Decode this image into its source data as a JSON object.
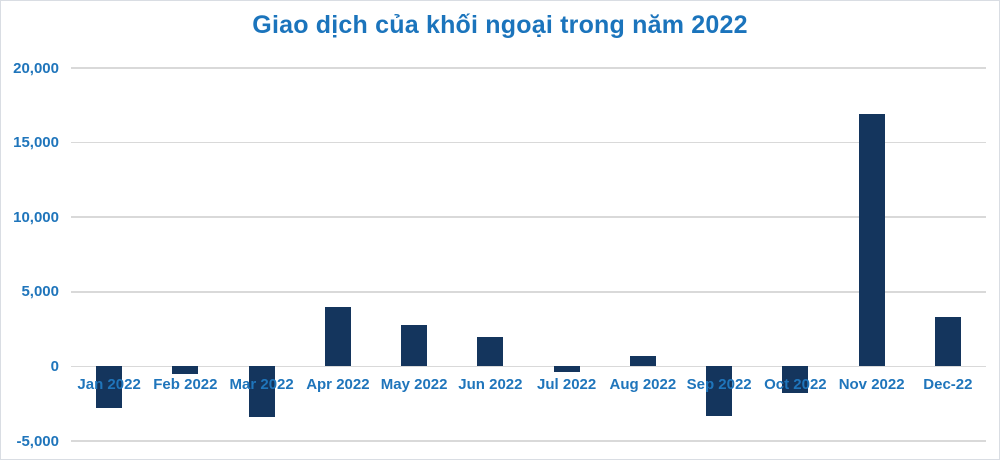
{
  "title": "Giao dịch của khối ngoại trong năm 2022",
  "colors": {
    "title_text": "#1B74BC",
    "axis_label_text": "#1F75BB",
    "bar_fill": "#14355D",
    "gridline": "#D9D9D9",
    "background": "#FFFFFF",
    "frame_border": "#D9DDE3"
  },
  "chart_data": {
    "type": "bar",
    "title": "Giao dịch của khối ngoại trong năm 2022",
    "xlabel": "",
    "ylabel": "",
    "ylim": [
      -5000,
      20000
    ],
    "grid": "horizontal gridlines only, light gray",
    "legend": "none",
    "bar_color": "#14355D",
    "categories": [
      "Jan 2022",
      "Feb 2022",
      "Mar 2022",
      "Apr 2022",
      "May 2022",
      "Jun 2022",
      "Jul 2022",
      "Aug 2022",
      "Sep 2022",
      "Oct 2022",
      "Nov 2022",
      "Dec-22"
    ],
    "values": [
      -2800,
      -500,
      -3400,
      4000,
      2750,
      1950,
      -400,
      700,
      -3350,
      -1750,
      16900,
      3300
    ],
    "yticks": [
      {
        "value": 20000,
        "label": "20,000"
      },
      {
        "value": 15000,
        "label": "15,000"
      },
      {
        "value": 10000,
        "label": "10,000"
      },
      {
        "value": 5000,
        "label": "5,000"
      },
      {
        "value": 0,
        "label": "0"
      },
      {
        "value": -5000,
        "label": "-5,000"
      }
    ]
  }
}
